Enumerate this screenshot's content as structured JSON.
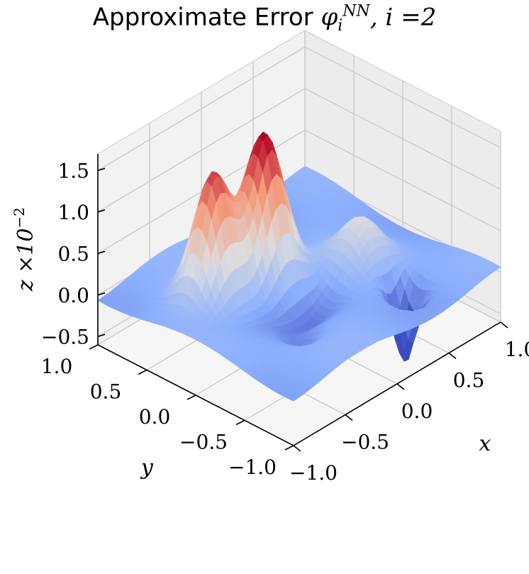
{
  "title": {
    "prefix": "Approximate Error ",
    "symbol": "φ",
    "superscript": "NN",
    "subscript": "i",
    "suffix": ", i =2"
  },
  "chart_data": {
    "type": "surface3d",
    "title": "Approximate Error φ_i^NN, i =2",
    "xlabel": "x",
    "ylabel": "y",
    "zlabel": "z ×10−2",
    "xlim": [
      -1.0,
      1.0
    ],
    "ylim": [
      -1.0,
      1.0
    ],
    "zlim": [
      -0.6,
      1.7
    ],
    "x_ticks": [
      "−1.0",
      "−0.5",
      "0.0",
      "0.5",
      "1.0"
    ],
    "y_ticks": [
      "−1.0",
      "−0.5",
      "0.0",
      "0.5",
      "1.0"
    ],
    "z_ticks": [
      "−0.5",
      "0.0",
      "0.5",
      "1.0",
      "1.5"
    ],
    "z_max": 1.75,
    "z_min": -0.6,
    "colormap": "coolwarm",
    "colormap_stops": [
      "#3b4cc0",
      "#8db0fe",
      "#dddddd",
      "#f49a7b",
      "#b40426"
    ],
    "grid": true,
    "features": [
      {
        "x": -0.1,
        "y": 0.25,
        "z": 1.75
      },
      {
        "x": -0.5,
        "y": 0.35,
        "z": 1.55
      },
      {
        "x": 0.45,
        "y": -0.15,
        "z": 0.45
      },
      {
        "x": 0.45,
        "y": -0.55,
        "z": -0.6
      }
    ]
  }
}
